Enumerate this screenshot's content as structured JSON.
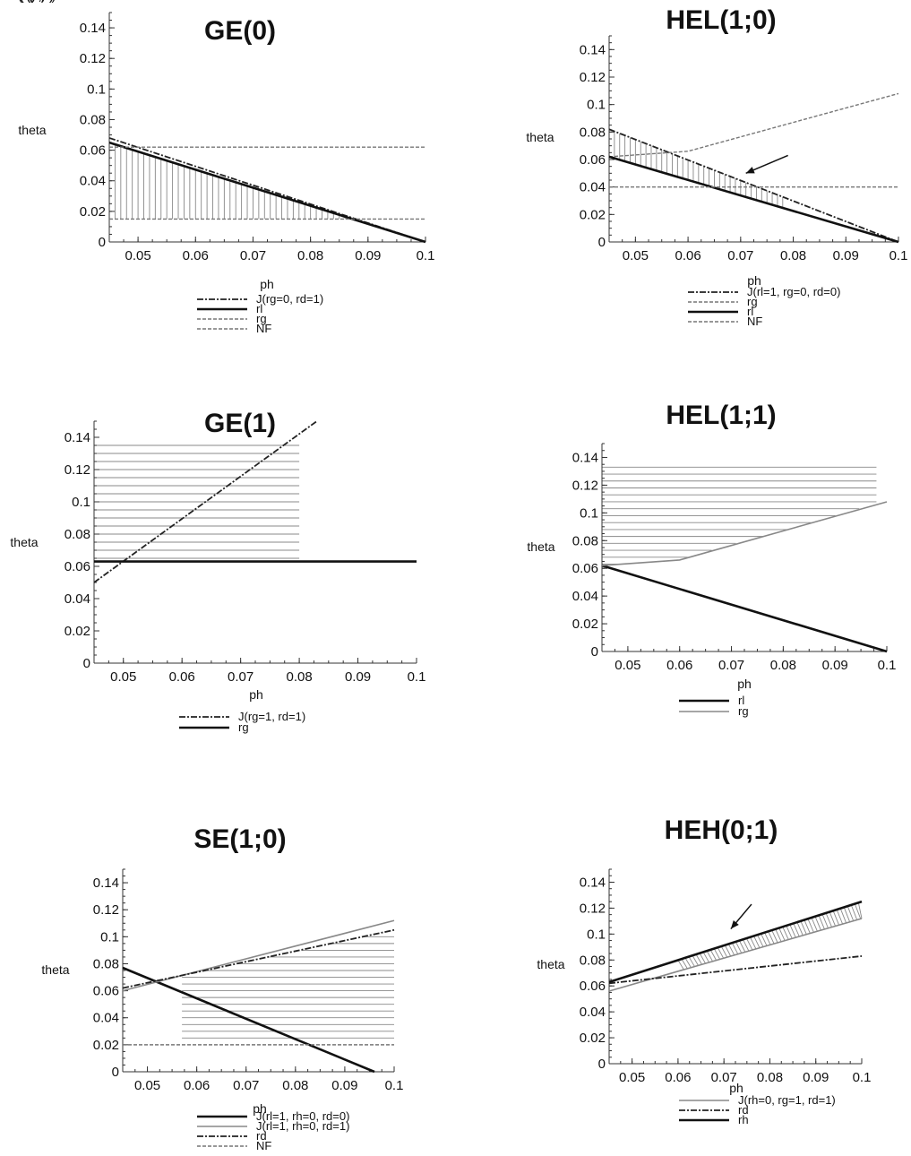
{
  "chart_data": [
    {
      "type": "line",
      "title": "GE(0)",
      "xlabel": "ph",
      "ylabel": "theta",
      "xlim": [
        0.045,
        0.1
      ],
      "ylim": [
        0,
        0.15
      ],
      "xticks": [
        "0.05",
        "0.06",
        "0.07",
        "0.08",
        "0.09",
        "0.1"
      ],
      "yticks": [
        "0",
        "0.02",
        "0.04",
        "0.06",
        "0.08",
        "0.1",
        "0.12",
        "0.14"
      ],
      "series": [
        {
          "name": "J(rg=0, rd=1)",
          "style": "dashdot",
          "x": [
            0.045,
            0.1
          ],
          "y": [
            0.068,
            0.0
          ]
        },
        {
          "name": "rl",
          "style": "solid-thick",
          "x": [
            0.045,
            0.1
          ],
          "y": [
            0.065,
            0.0
          ]
        },
        {
          "name": "rg",
          "style": "dashed",
          "x": [
            0.045,
            0.1
          ],
          "y": [
            0.062,
            0.062
          ]
        },
        {
          "name": "NF",
          "style": "dashed",
          "x": [
            0.045,
            0.1
          ],
          "y": [
            0.015,
            0.015
          ]
        }
      ],
      "legend": "bottom",
      "annotation": "GE(0)",
      "shade": {
        "pattern": "vertical",
        "x0": 0.045,
        "x1": 0.0915,
        "top": "rl",
        "bottom": 0.015
      }
    },
    {
      "type": "line",
      "title": "HEL(1;0)",
      "xlabel": "ph",
      "ylabel": "theta",
      "xlim": [
        0.045,
        0.1
      ],
      "ylim": [
        0,
        0.15
      ],
      "xticks": [
        "0.05",
        "0.06",
        "0.07",
        "0.08",
        "0.09",
        "0.1"
      ],
      "yticks": [
        "0",
        "0.02",
        "0.04",
        "0.06",
        "0.08",
        "0.1",
        "0.12",
        "0.14"
      ],
      "series": [
        {
          "name": "J(rl=1, rg=0, rd=0)",
          "style": "dashdot",
          "x": [
            0.045,
            0.1
          ],
          "y": [
            0.082,
            0.0
          ]
        },
        {
          "name": "rg",
          "style": "dashed",
          "x": [
            0.045,
            0.06,
            0.1
          ],
          "y": [
            0.062,
            0.066,
            0.108
          ]
        },
        {
          "name": "rl",
          "style": "solid-thick",
          "x": [
            0.045,
            0.1
          ],
          "y": [
            0.062,
            0.0
          ]
        },
        {
          "name": "NF",
          "style": "dashed",
          "x": [
            0.045,
            0.1
          ],
          "y": [
            0.04,
            0.04
          ]
        }
      ],
      "legend": "bottom",
      "annotation": "HEL(1;0)",
      "shade": {
        "pattern": "vertical",
        "x0": 0.045,
        "x1": 0.078,
        "top": "J(rl=1, rg=0, rd=0)",
        "bottom": "rl"
      }
    },
    {
      "type": "line",
      "title": "GE(1)",
      "xlabel": "ph",
      "ylabel": "theta",
      "xlim": [
        0.045,
        0.1
      ],
      "ylim": [
        0,
        0.15
      ],
      "xticks": [
        "0.05",
        "0.06",
        "0.07",
        "0.08",
        "0.09",
        "0.1"
      ],
      "yticks": [
        "0",
        "0.02",
        "0.04",
        "0.06",
        "0.08",
        "0.1",
        "0.12",
        "0.14"
      ],
      "series": [
        {
          "name": "J(rg=1, rd=1)",
          "style": "dashdot",
          "x": [
            0.045,
            0.083
          ],
          "y": [
            0.05,
            0.15
          ]
        },
        {
          "name": "rg",
          "style": "solid-thick",
          "x": [
            0.045,
            0.1
          ],
          "y": [
            0.063,
            0.063
          ]
        }
      ],
      "legend": "bottom",
      "annotation": "GE(1)",
      "shade": {
        "pattern": "horizontal",
        "x0": 0.045,
        "x1": 0.08,
        "top": 0.135,
        "bottom": 0.063
      }
    },
    {
      "type": "line",
      "title": "HEL(1;1)",
      "xlabel": "ph",
      "ylabel": "theta",
      "xlim": [
        0.045,
        0.1
      ],
      "ylim": [
        0,
        0.15
      ],
      "xticks": [
        "0.05",
        "0.06",
        "0.07",
        "0.08",
        "0.09",
        "0.1"
      ],
      "yticks": [
        "0",
        "0.02",
        "0.04",
        "0.06",
        "0.08",
        "0.1",
        "0.12",
        "0.14"
      ],
      "series": [
        {
          "name": "rl",
          "style": "solid-thick",
          "x": [
            0.045,
            0.1
          ],
          "y": [
            0.062,
            0.0
          ]
        },
        {
          "name": "rg",
          "style": "solid-gray",
          "x": [
            0.045,
            0.06,
            0.1
          ],
          "y": [
            0.062,
            0.066,
            0.108
          ]
        }
      ],
      "legend": "bottom",
      "annotation": "HEL(1;1)",
      "shade": {
        "pattern": "horizontal",
        "x0": 0.045,
        "x1": 0.098,
        "top": 0.133,
        "bottom": "rg"
      }
    },
    {
      "type": "line",
      "title": "SE(1;0)",
      "xlabel": "ph",
      "ylabel": "theta",
      "xlim": [
        0.045,
        0.1
      ],
      "ylim": [
        0,
        0.15
      ],
      "xticks": [
        "0.05",
        "0.06",
        "0.07",
        "0.08",
        "0.09",
        "0.1"
      ],
      "yticks": [
        "0",
        "0.02",
        "0.04",
        "0.06",
        "0.08",
        "0.1",
        "0.12",
        "0.14"
      ],
      "series": [
        {
          "name": "J(rl=1, rh=0, rd=0)",
          "style": "solid-thick",
          "x": [
            0.045,
            0.096
          ],
          "y": [
            0.077,
            0.0
          ]
        },
        {
          "name": "J(rl=1, rh=0, rd=1)",
          "style": "solid-gray",
          "x": [
            0.045,
            0.1
          ],
          "y": [
            0.06,
            0.112
          ]
        },
        {
          "name": "rd",
          "style": "dashdot",
          "x": [
            0.045,
            0.1
          ],
          "y": [
            0.062,
            0.105
          ]
        },
        {
          "name": "NF",
          "style": "dashed",
          "x": [
            0.045,
            0.1
          ],
          "y": [
            0.02,
            0.02
          ]
        }
      ],
      "legend": "bottom",
      "annotation": "SE(1;0)",
      "shade": {
        "pattern": "horizontal",
        "x0": 0.057,
        "x1": 0.1,
        "top": "rd",
        "bottom": 0.02
      }
    },
    {
      "type": "line",
      "title": "HEH(0;1)",
      "xlabel": "ph",
      "ylabel": "theta",
      "xlim": [
        0.045,
        0.1
      ],
      "ylim": [
        0,
        0.15
      ],
      "xticks": [
        "0.05",
        "0.06",
        "0.07",
        "0.08",
        "0.09",
        "0.1"
      ],
      "yticks": [
        "0",
        "0.02",
        "0.04",
        "0.06",
        "0.08",
        "0.1",
        "0.12",
        "0.14"
      ],
      "series": [
        {
          "name": "J(rh=0, rg=1, rd=1)",
          "style": "solid-gray",
          "x": [
            0.045,
            0.1
          ],
          "y": [
            0.056,
            0.112
          ]
        },
        {
          "name": "rd",
          "style": "dashdot",
          "x": [
            0.045,
            0.1
          ],
          "y": [
            0.062,
            0.083
          ]
        },
        {
          "name": "rh",
          "style": "solid-thick",
          "x": [
            0.045,
            0.1
          ],
          "y": [
            0.063,
            0.125
          ]
        }
      ],
      "legend": "bottom",
      "annotation": "HEH(0;1)",
      "shade": {
        "pattern": "diagonal",
        "x0": 0.06,
        "x1": 0.1,
        "top": "rh",
        "bottom": "J(rh=0, rg=1, rd=1)"
      }
    }
  ]
}
